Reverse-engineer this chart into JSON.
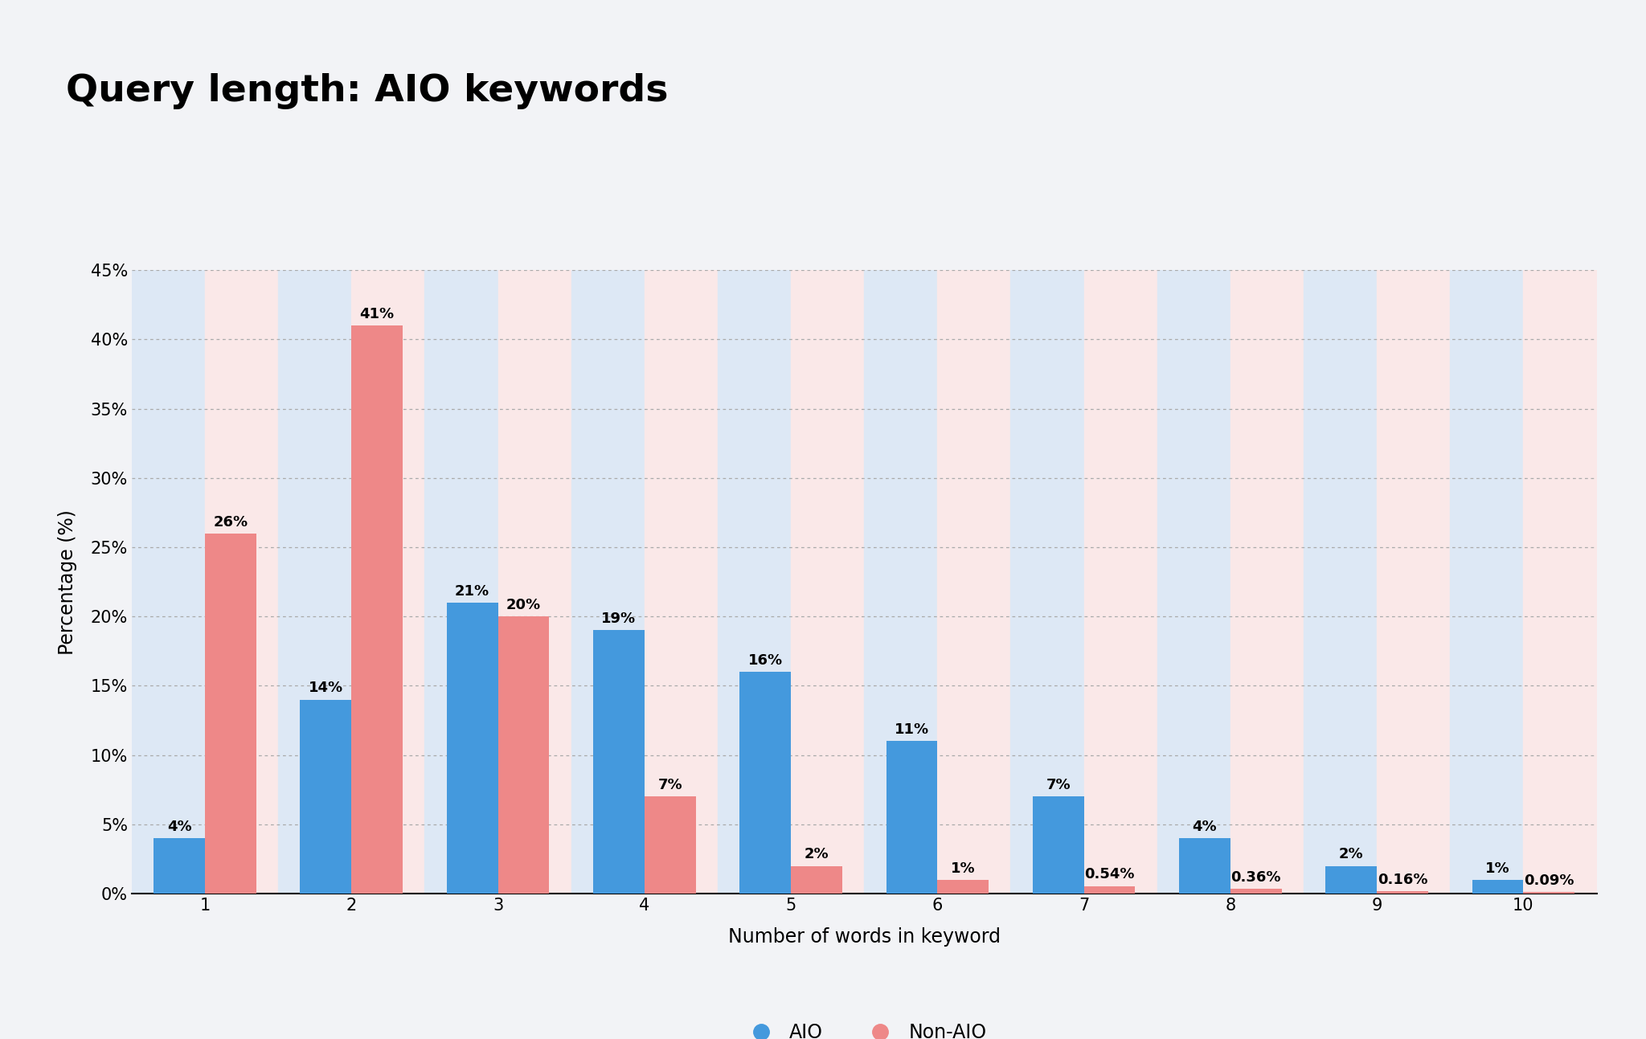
{
  "title": "Query length: AIO keywords",
  "xlabel": "Number of words in keyword",
  "ylabel": "Percentage (%)",
  "categories": [
    1,
    2,
    3,
    4,
    5,
    6,
    7,
    8,
    9,
    10
  ],
  "aio_values": [
    4,
    14,
    21,
    19,
    16,
    11,
    7,
    4,
    2,
    1
  ],
  "non_aio_values": [
    26,
    41,
    20,
    7,
    2,
    1,
    0.54,
    0.36,
    0.16,
    0.09
  ],
  "aio_label_values": [
    "4%",
    "14%",
    "21%",
    "19%",
    "16%",
    "11%",
    "7%",
    "4%",
    "2%",
    "1%"
  ],
  "non_aio_label_values": [
    "26%",
    "41%",
    "20%",
    "7%",
    "2%",
    "1%",
    "0.54%",
    "0.36%",
    "0.16%",
    "0.09%"
  ],
  "aio_color": "#4499dd",
  "non_aio_color": "#ee8888",
  "aio_bg_color": "#dde8f5",
  "non_aio_bg_color": "#fae8e8",
  "background_color": "#f2f3f6",
  "ylim": [
    0,
    45
  ],
  "yticks": [
    0,
    5,
    10,
    15,
    20,
    25,
    30,
    35,
    40,
    45
  ],
  "title_fontsize": 34,
  "axis_label_fontsize": 17,
  "tick_fontsize": 15,
  "bar_label_fontsize": 13,
  "legend_fontsize": 17
}
